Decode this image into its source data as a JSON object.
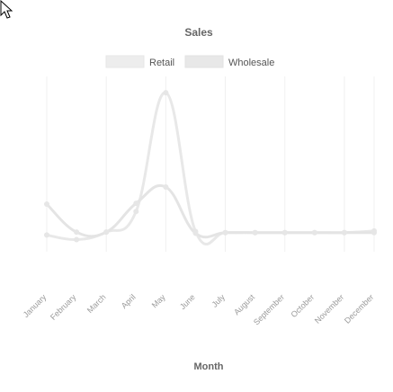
{
  "chart_data": {
    "type": "line",
    "title": "Sales",
    "xlabel": "Month",
    "ylabel": "",
    "categories": [
      "January",
      "February",
      "March",
      "April",
      "May",
      "June",
      "July",
      "August",
      "September",
      "October",
      "November",
      "December"
    ],
    "series": [
      {
        "name": "Retail",
        "values": [
          7.5,
          4.7,
          9.3,
          22,
          95,
          9.7,
          9.0,
          9.0,
          9.0,
          9.0,
          9.0,
          10
        ]
      },
      {
        "name": "Wholesale",
        "values": [
          26.5,
          9.3,
          9.3,
          27,
          37,
          8.6,
          9.0,
          9.0,
          9.0,
          9.0,
          9.0,
          9.0
        ]
      }
    ],
    "ylim": [
      0,
      105
    ],
    "grid": true,
    "legend": "top-center",
    "colors": {
      "Retail": "#e8e8e8",
      "Wholesale": "#e6e6e6"
    }
  }
}
